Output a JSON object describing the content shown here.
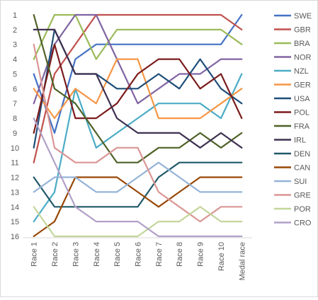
{
  "chart_data": {
    "type": "line",
    "title": "",
    "xlabel": "",
    "ylabel": "",
    "y_reversed": true,
    "ylim": [
      1,
      16
    ],
    "yticks": [
      1,
      2,
      3,
      4,
      5,
      6,
      7,
      8,
      9,
      10,
      11,
      12,
      13,
      14,
      15,
      16
    ],
    "grid": false,
    "legend_position": "right",
    "categories": [
      "Race 1",
      "Race 2",
      "Race 3",
      "Race 4",
      "Race 5",
      "Race 6",
      "Race 7",
      "Race 8",
      "Race 9",
      "Race 10",
      "Medal race"
    ],
    "series": [
      {
        "name": "SWE",
        "color": "#4472c4",
        "values": [
          5,
          9,
          4,
          3,
          3,
          3,
          3,
          3,
          3,
          3,
          1
        ]
      },
      {
        "name": "GBR",
        "color": "#c0504d",
        "values": [
          11,
          5,
          3,
          1,
          1,
          1,
          1,
          1,
          1,
          1,
          2
        ]
      },
      {
        "name": "BRA",
        "color": "#9bbb59",
        "values": [
          4,
          1,
          1,
          4,
          2,
          2,
          2,
          2,
          2,
          2,
          3
        ]
      },
      {
        "name": "NOR",
        "color": "#8064a2",
        "values": [
          7,
          3,
          1,
          1,
          4,
          7,
          6,
          5,
          5,
          4,
          4
        ]
      },
      {
        "name": "NZL",
        "color": "#4bacc6",
        "values": [
          15,
          13,
          6,
          10,
          9,
          8,
          7,
          7,
          7,
          8,
          5
        ]
      },
      {
        "name": "GER",
        "color": "#f79646",
        "values": [
          6,
          8,
          6,
          7,
          4,
          4,
          8,
          8,
          8,
          7,
          6
        ]
      },
      {
        "name": "USA",
        "color": "#1f4e79",
        "values": [
          10,
          2,
          5,
          5,
          6,
          6,
          5,
          6,
          4,
          6,
          7
        ]
      },
      {
        "name": "POL",
        "color": "#7b1c1c",
        "values": [
          9,
          3,
          8,
          8,
          7,
          5,
          4,
          4,
          6,
          5,
          8
        ]
      },
      {
        "name": "FRA",
        "color": "#4f6228",
        "values": [
          1,
          6,
          7,
          9,
          11,
          11,
          10,
          10,
          9,
          10,
          9
        ]
      },
      {
        "name": "IRL",
        "color": "#3f3151",
        "values": [
          2,
          2,
          5,
          5,
          8,
          9,
          9,
          9,
          10,
          9,
          10
        ]
      },
      {
        "name": "DEN",
        "color": "#215968",
        "values": [
          12,
          14,
          14,
          14,
          14,
          14,
          12,
          11,
          11,
          11,
          11
        ]
      },
      {
        "name": "CAN",
        "color": "#984807",
        "values": [
          16,
          15,
          12,
          12,
          12,
          13,
          14,
          13,
          12,
          12,
          12
        ]
      },
      {
        "name": "SUI",
        "color": "#95b3d7",
        "values": [
          13,
          12,
          12,
          13,
          13,
          12,
          11,
          12,
          13,
          13,
          13
        ]
      },
      {
        "name": "GRE",
        "color": "#da9694",
        "values": [
          3,
          10,
          11,
          11,
          10,
          10,
          13,
          14,
          15,
          14,
          14
        ]
      },
      {
        "name": "POR",
        "color": "#c3d69b",
        "values": [
          14,
          16,
          16,
          16,
          16,
          16,
          15,
          15,
          14,
          15,
          15
        ]
      },
      {
        "name": "CRO",
        "color": "#b1a0c7",
        "values": [
          8,
          11,
          14,
          15,
          15,
          15,
          16,
          16,
          16,
          16,
          16
        ]
      }
    ]
  }
}
